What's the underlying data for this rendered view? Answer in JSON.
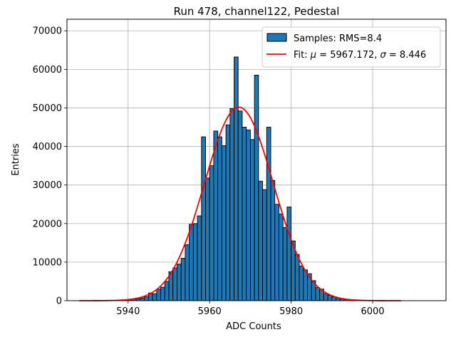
{
  "chart_data": {
    "type": "bar",
    "title": "Run 478, channel122, Pedestal",
    "xlabel": "ADC Counts",
    "ylabel": "Entries",
    "xlim": [
      5925,
      6018
    ],
    "ylim": [
      0,
      73000
    ],
    "x_ticks": [
      5940,
      5960,
      5980,
      6000
    ],
    "y_ticks": [
      0,
      10000,
      20000,
      30000,
      40000,
      50000,
      60000,
      70000
    ],
    "grid": true,
    "legend_position": "top-right",
    "colors": {
      "bars": "#1f77b4",
      "bar_edge": "#000000",
      "fit": "#ff0000",
      "grid": "#b0b0b0"
    },
    "histogram": {
      "name": "Samples: RMS=8.4",
      "bin_width": 1,
      "bin_starts": [
        5940,
        5941,
        5942,
        5943,
        5944,
        5945,
        5946,
        5947,
        5948,
        5949,
        5950,
        5951,
        5952,
        5953,
        5954,
        5955,
        5956,
        5957,
        5958,
        5959,
        5960,
        5961,
        5962,
        5963,
        5964,
        5965,
        5966,
        5967,
        5968,
        5969,
        5970,
        5971,
        5972,
        5973,
        5974,
        5975,
        5976,
        5977,
        5978,
        5979,
        5980,
        5981,
        5982,
        5983,
        5984,
        5985,
        5986,
        5987,
        5988,
        5989,
        5990,
        5991,
        5992,
        5993,
        5994,
        5995,
        5996,
        5997,
        5998,
        5999
      ],
      "counts": [
        200,
        400,
        500,
        700,
        1000,
        2000,
        1800,
        3000,
        3500,
        5000,
        7500,
        8500,
        9500,
        11000,
        14500,
        19800,
        20000,
        22000,
        42500,
        31800,
        35000,
        44000,
        42500,
        40200,
        45600,
        49800,
        63200,
        49200,
        45000,
        44300,
        41800,
        58500,
        31000,
        28800,
        45000,
        31200,
        25000,
        22500,
        19000,
        24300,
        15500,
        12000,
        9000,
        8000,
        7000,
        5200,
        3400,
        3000,
        1800,
        1400,
        1000,
        700,
        500,
        300,
        150,
        100,
        80,
        50,
        30,
        20
      ]
    },
    "fit": {
      "name": "Fit: $\\mu$ = 5967.172, $\\sigma$ = 8.446",
      "label_text": "Fit: ",
      "mu_symbol": "μ",
      "mu_text": " = 5967.172, ",
      "sigma_symbol": "σ",
      "sigma_text": " = 8.446",
      "mu": 5967.172,
      "sigma": 8.446,
      "amplitude": 50200,
      "x_range": [
        5928,
        6007
      ]
    }
  }
}
